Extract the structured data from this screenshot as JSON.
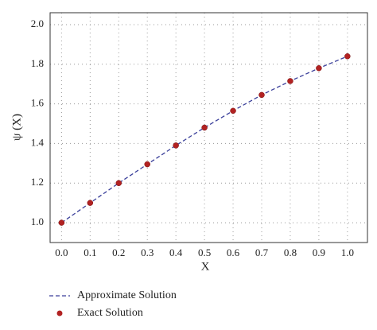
{
  "chart_data": {
    "type": "line",
    "x_label": "X",
    "y_label": "ψ (X)",
    "x": [
      0.0,
      0.1,
      0.2,
      0.3,
      0.4,
      0.5,
      0.6,
      0.7,
      0.8,
      0.9,
      1.0
    ],
    "series": [
      {
        "name": "Approximate Solution",
        "color": "#3a3f9a",
        "style": "dashed",
        "values": [
          1.0,
          1.1,
          1.2,
          1.295,
          1.39,
          1.48,
          1.565,
          1.645,
          1.715,
          1.78,
          1.84
        ]
      },
      {
        "name": "Exact Solution",
        "color": "#b22222",
        "style": "markers",
        "values": [
          1.0,
          1.1,
          1.2,
          1.295,
          1.39,
          1.48,
          1.565,
          1.645,
          1.715,
          1.78,
          1.84
        ]
      }
    ],
    "xlim": [
      -0.04,
      1.07
    ],
    "xticks": [
      {
        "value": 0,
        "label": "0.0"
      },
      0.1,
      0.2,
      0.3,
      0.4,
      0.5,
      0.6,
      0.7,
      0.8,
      0.9,
      {
        "value": 1,
        "label": "1.0"
      }
    ],
    "ylim": [
      0.9,
      2.06
    ],
    "yticks": [
      {
        "value": 1,
        "label": "1.0"
      },
      1.2,
      1.4,
      1.6,
      1.8,
      {
        "value": 2,
        "label": "2.0"
      }
    ],
    "grid": true,
    "legend": "bottom-left"
  }
}
